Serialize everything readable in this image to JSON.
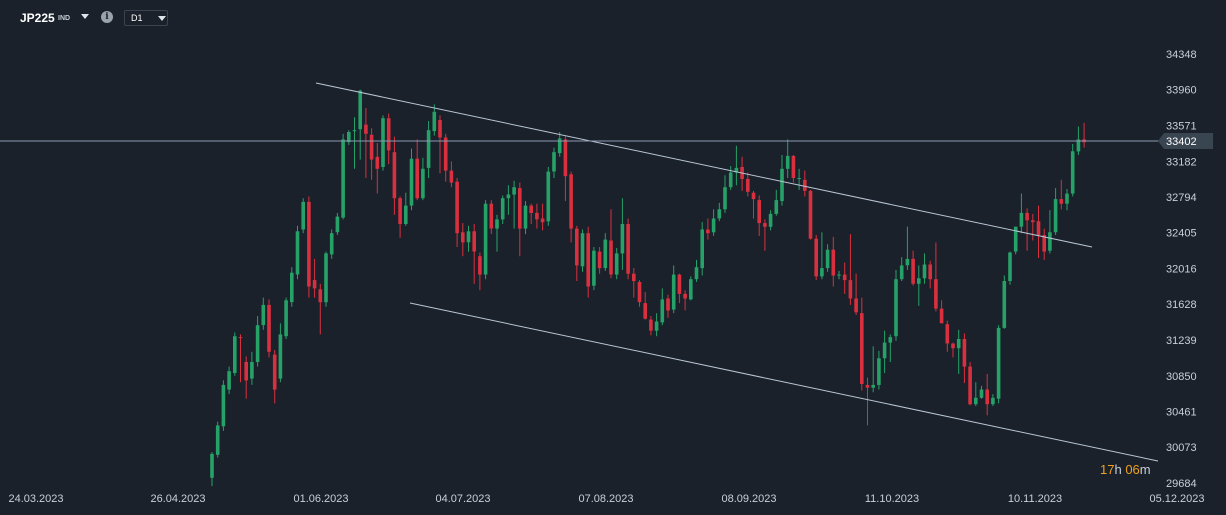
{
  "toolbar": {
    "symbol": "JP225",
    "symbol_tag": "IND",
    "info_glyph": "i",
    "timeframe": "D1"
  },
  "countdown": {
    "hours": "17",
    "hours_unit": "h",
    "minutes": "06",
    "minutes_unit": "m"
  },
  "chart_data": {
    "type": "candlestick",
    "y_ticks": [
      34348,
      33960,
      33571,
      33182,
      32794,
      32405,
      32016,
      31628,
      31239,
      30850,
      30461,
      30073,
      29684
    ],
    "ylim": [
      29684,
      34348
    ],
    "x_ticks": [
      "24.03.2023",
      "26.04.2023",
      "01.06.2023",
      "04.07.2023",
      "07.08.2023",
      "08.09.2023",
      "11.10.2023",
      "10.11.2023",
      "05.12.2023"
    ],
    "current_price": 33402,
    "colors": {
      "up": "#26a269",
      "down": "#d9303f",
      "background": "#1a212a",
      "line": "#8b9bb0"
    },
    "candles": [
      [
        29740,
        30000,
        29650,
        30020
      ],
      [
        29990,
        30310,
        29960,
        30350
      ],
      [
        30300,
        30750,
        30250,
        30800
      ],
      [
        30700,
        30900,
        30650,
        30950
      ],
      [
        30880,
        31280,
        30850,
        31320
      ],
      [
        31270,
        31260,
        30780,
        31300
      ],
      [
        31000,
        30800,
        30600,
        31060
      ],
      [
        30820,
        31000,
        30750,
        31110
      ],
      [
        31000,
        31400,
        30950,
        31500
      ],
      [
        31400,
        31620,
        31350,
        31700
      ],
      [
        31620,
        31110,
        31050,
        31680
      ],
      [
        31080,
        30700,
        30550,
        31130
      ],
      [
        30820,
        31300,
        30780,
        31420
      ],
      [
        31280,
        31670,
        31250,
        31700
      ],
      [
        31650,
        31970,
        31600,
        32030
      ],
      [
        31950,
        32420,
        31900,
        32480
      ],
      [
        32440,
        32740,
        32400,
        32780
      ],
      [
        32740,
        31820,
        31700,
        32800
      ],
      [
        31890,
        31800,
        31700,
        32120
      ],
      [
        31790,
        31650,
        31300,
        31850
      ],
      [
        31650,
        32180,
        31600,
        32200
      ],
      [
        32170,
        32400,
        32120,
        32440
      ],
      [
        32410,
        32580,
        32380,
        32620
      ],
      [
        32570,
        33420,
        32550,
        33480
      ],
      [
        33390,
        33500,
        33360,
        33520
      ],
      [
        33520,
        33520,
        33100,
        33660
      ],
      [
        33530,
        33950,
        33200,
        33960
      ],
      [
        33580,
        33480,
        33000,
        33760
      ],
      [
        33470,
        33200,
        32980,
        33540
      ],
      [
        33230,
        33100,
        32830,
        33380
      ],
      [
        33120,
        33650,
        33080,
        33680
      ],
      [
        33650,
        33300,
        33150,
        33700
      ],
      [
        33280,
        32780,
        32600,
        33450
      ],
      [
        32780,
        32500,
        32350,
        32800
      ],
      [
        32500,
        32700,
        32480,
        32840
      ],
      [
        32700,
        33210,
        32650,
        33320
      ],
      [
        33210,
        32780,
        32760,
        33420
      ],
      [
        32780,
        33100,
        32760,
        33220
      ],
      [
        33110,
        33520,
        33000,
        33620
      ],
      [
        33510,
        33720,
        33460,
        33800
      ],
      [
        33630,
        33440,
        33050,
        33680
      ],
      [
        33440,
        33080,
        32960,
        33480
      ],
      [
        33080,
        32950,
        32900,
        33180
      ],
      [
        32960,
        32400,
        32250,
        33000
      ],
      [
        32410,
        32300,
        32150,
        32510
      ],
      [
        32300,
        32420,
        32200,
        32480
      ],
      [
        32420,
        32200,
        31850,
        32500
      ],
      [
        32150,
        31950,
        31780,
        32190
      ],
      [
        31950,
        32720,
        31900,
        32760
      ],
      [
        32720,
        32450,
        32390,
        32760
      ],
      [
        32450,
        32550,
        32200,
        32600
      ],
      [
        32550,
        32780,
        32500,
        32810
      ],
      [
        32780,
        32820,
        32600,
        32920
      ],
      [
        32820,
        32900,
        32450,
        32970
      ],
      [
        32890,
        32450,
        32150,
        32950
      ],
      [
        32450,
        32700,
        32390,
        32750
      ],
      [
        32700,
        32620,
        32500,
        32720
      ],
      [
        32620,
        32550,
        32450,
        32720
      ],
      [
        32560,
        32520,
        32430,
        32720
      ],
      [
        32530,
        33070,
        32480,
        33120
      ],
      [
        33070,
        33280,
        33000,
        33330
      ],
      [
        33270,
        33430,
        33230,
        33500
      ],
      [
        33420,
        33020,
        32750,
        33460
      ],
      [
        33040,
        32450,
        32300,
        33070
      ],
      [
        32450,
        32050,
        31880,
        32480
      ],
      [
        32040,
        32400,
        31980,
        32440
      ],
      [
        32400,
        31820,
        31700,
        32470
      ],
      [
        31830,
        32210,
        31780,
        32250
      ],
      [
        32200,
        32020,
        31960,
        32250
      ],
      [
        32020,
        32330,
        31990,
        32400
      ],
      [
        32320,
        31950,
        31910,
        32660
      ],
      [
        31950,
        32180,
        31900,
        32240
      ],
      [
        32180,
        32500,
        32000,
        32780
      ],
      [
        32500,
        31960,
        31900,
        32560
      ],
      [
        31960,
        31880,
        31700,
        32020
      ],
      [
        31870,
        31650,
        31600,
        31890
      ],
      [
        31640,
        31470,
        31460,
        31760
      ],
      [
        31460,
        31340,
        31290,
        31500
      ],
      [
        31340,
        31440,
        31280,
        31530
      ],
      [
        31430,
        31680,
        31400,
        31800
      ],
      [
        31690,
        31560,
        31480,
        31730
      ],
      [
        31570,
        31950,
        31530,
        32050
      ],
      [
        31950,
        31740,
        31640,
        31960
      ],
      [
        31740,
        31690,
        31560,
        31780
      ],
      [
        31680,
        31900,
        31670,
        31930
      ],
      [
        31900,
        32030,
        31870,
        32110
      ],
      [
        32020,
        32440,
        31940,
        32520
      ],
      [
        32440,
        32400,
        32330,
        32560
      ],
      [
        32410,
        32560,
        32370,
        32660
      ],
      [
        32560,
        32660,
        32530,
        32730
      ],
      [
        32660,
        32900,
        32620,
        33030
      ],
      [
        32900,
        33060,
        32870,
        33130
      ],
      [
        33060,
        33110,
        32920,
        33350
      ],
      [
        33120,
        32990,
        32860,
        33230
      ],
      [
        32990,
        32850,
        32800,
        33060
      ],
      [
        32840,
        32770,
        32560,
        32860
      ],
      [
        32760,
        32510,
        32370,
        32810
      ],
      [
        32510,
        32470,
        32210,
        32550
      ],
      [
        32470,
        32610,
        32430,
        32650
      ],
      [
        32610,
        32760,
        32590,
        32870
      ],
      [
        32750,
        33100,
        32700,
        33250
      ],
      [
        33100,
        33240,
        33000,
        33420
      ],
      [
        33240,
        33000,
        32950,
        33250
      ],
      [
        32990,
        33000,
        32870,
        33100
      ],
      [
        32980,
        32860,
        32800,
        33080
      ],
      [
        32860,
        32340,
        32330,
        32870
      ],
      [
        32340,
        31930,
        31890,
        32380
      ],
      [
        31930,
        32020,
        31900,
        32410
      ],
      [
        32020,
        32220,
        31980,
        32280
      ],
      [
        32220,
        31940,
        31820,
        32360
      ],
      [
        31940,
        31950,
        31900,
        31990
      ],
      [
        31950,
        31890,
        31740,
        32080
      ],
      [
        31890,
        31690,
        31620,
        32390
      ],
      [
        31690,
        31540,
        31510,
        31960
      ],
      [
        31530,
        30760,
        30690,
        31700
      ],
      [
        30750,
        30720,
        30310,
        30830
      ],
      [
        30720,
        30750,
        30670,
        31170
      ],
      [
        30750,
        31040,
        30700,
        31120
      ],
      [
        31040,
        31210,
        30880,
        31340
      ],
      [
        31210,
        31270,
        31000,
        31300
      ],
      [
        31280,
        31900,
        31230,
        32000
      ],
      [
        31900,
        32050,
        31880,
        32140
      ],
      [
        32050,
        32120,
        32000,
        32470
      ],
      [
        32120,
        31850,
        31830,
        32210
      ],
      [
        31850,
        31910,
        31610,
        32050
      ],
      [
        31910,
        32060,
        31850,
        32180
      ],
      [
        32060,
        31900,
        31800,
        32100
      ],
      [
        31900,
        31580,
        31550,
        32300
      ],
      [
        31580,
        31420,
        31420,
        31670
      ],
      [
        31410,
        31200,
        31110,
        31450
      ],
      [
        31200,
        31150,
        31050,
        31210
      ],
      [
        31150,
        31250,
        30870,
        31350
      ],
      [
        31250,
        30950,
        30770,
        31310
      ],
      [
        30950,
        30540,
        30530,
        31000
      ],
      [
        30540,
        30610,
        30520,
        30780
      ],
      [
        30610,
        30700,
        30600,
        30740
      ],
      [
        30700,
        30540,
        30420,
        30870
      ],
      [
        30540,
        30610,
        30520,
        30650
      ],
      [
        30600,
        31370,
        30550,
        31400
      ],
      [
        31370,
        31880,
        31360,
        31940
      ],
      [
        31880,
        32190,
        31840,
        32200
      ],
      [
        32200,
        32470,
        32170,
        32470
      ],
      [
        32470,
        32620,
        32400,
        32830
      ],
      [
        32620,
        32540,
        32210,
        32670
      ],
      [
        32540,
        32520,
        32320,
        32610
      ],
      [
        32530,
        32380,
        32130,
        32700
      ],
      [
        32380,
        32200,
        32110,
        32450
      ],
      [
        32210,
        32410,
        32180,
        32650
      ],
      [
        32410,
        32770,
        32380,
        32890
      ],
      [
        32770,
        32720,
        32660,
        32980
      ],
      [
        32720,
        32830,
        32650,
        32880
      ],
      [
        32830,
        33290,
        32800,
        33370
      ],
      [
        33290,
        33420,
        33250,
        33560
      ],
      [
        33420,
        33390,
        33330,
        33600
      ]
    ],
    "upper_trendline": [
      [
        316,
        83
      ],
      [
        1092,
        247
      ]
    ],
    "lower_trendline": [
      [
        410,
        303
      ],
      [
        1158,
        461
      ]
    ]
  }
}
